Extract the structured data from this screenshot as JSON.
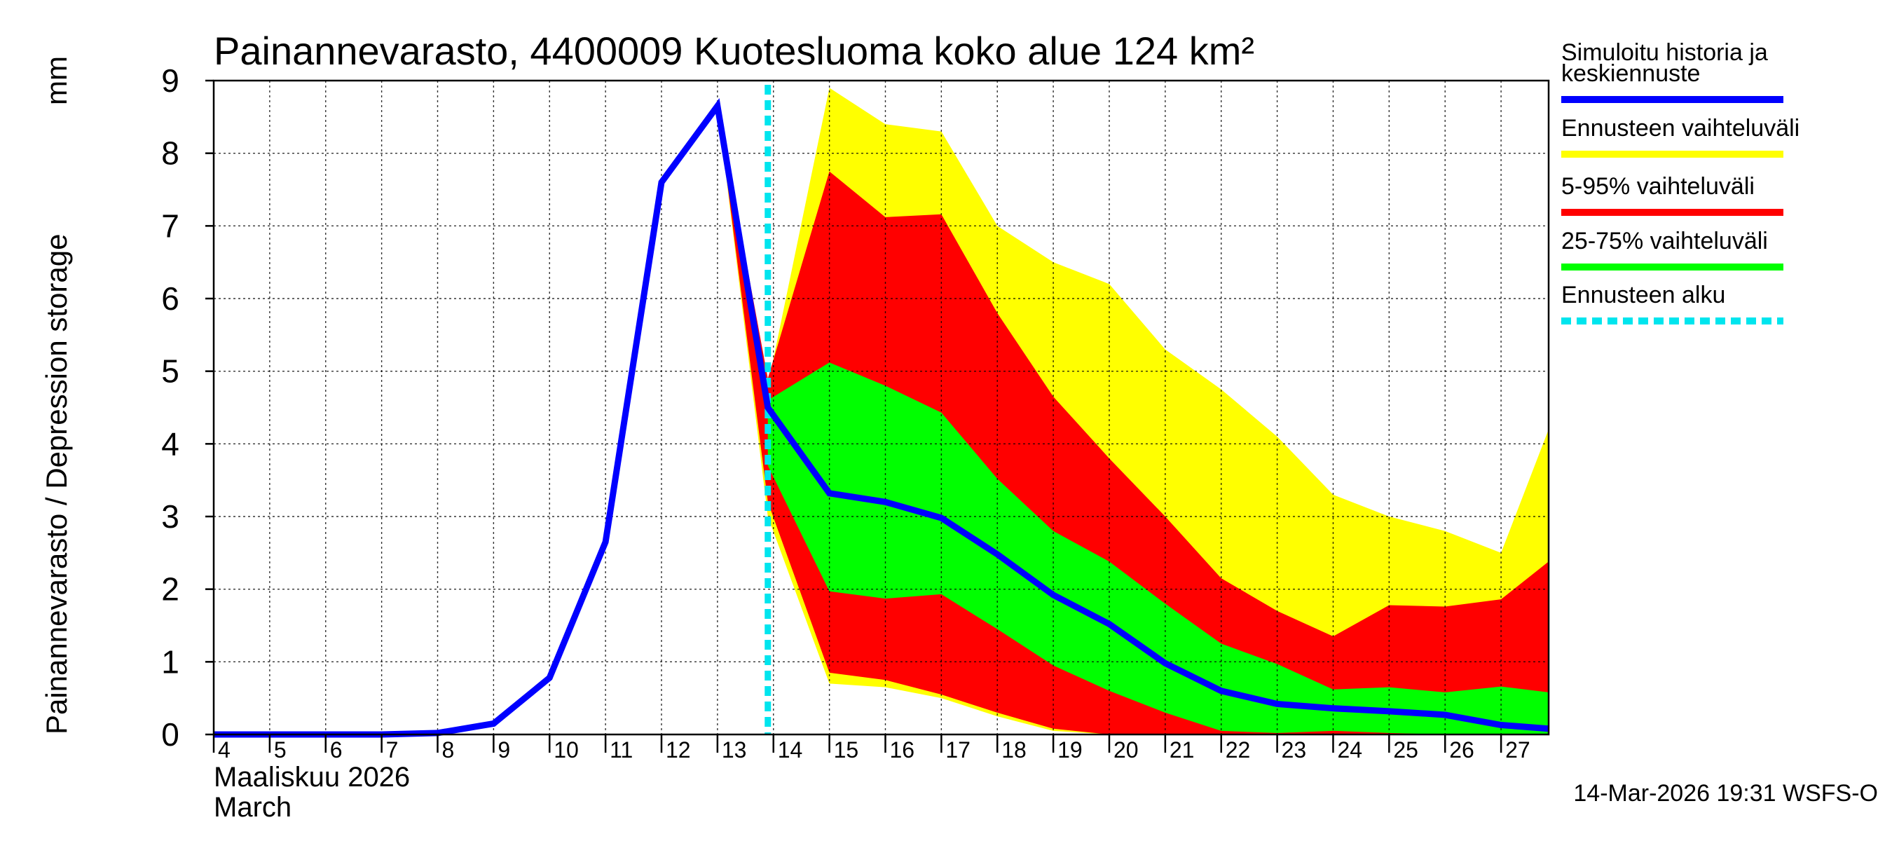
{
  "chart_data": {
    "type": "area",
    "title": "Painannevarasto, 4400009 Kuotesluoma koko alue 124 km²",
    "ylabel_fi": "Painannevarasto / Depression storage",
    "yunit": "mm",
    "xlabel_fi": "Maaliskuu 2026",
    "xlabel_en": "March",
    "ylim": [
      0,
      9
    ],
    "xlim": [
      4,
      27.85
    ],
    "y_ticks": [
      "0",
      "1",
      "2",
      "3",
      "4",
      "5",
      "6",
      "7",
      "8",
      "9"
    ],
    "x_tick_labels": [
      "4",
      "5",
      "6",
      "7",
      "8",
      "9",
      "10",
      "11",
      "12",
      "13",
      "14",
      "15",
      "16",
      "17",
      "18",
      "19",
      "20",
      "21",
      "22",
      "23",
      "24",
      "25",
      "26",
      "27"
    ],
    "grid": true,
    "forecast_start_x": 13.9,
    "series": [
      {
        "name": "Simuloitu historia ja keskiennuste",
        "color": "#0000ff",
        "x": [
          4,
          5,
          6,
          7,
          8,
          9,
          10,
          11,
          12,
          13,
          13.9,
          15,
          16,
          17,
          18,
          19,
          20,
          21,
          22,
          23,
          24,
          25,
          26,
          27,
          27.85
        ],
        "y": [
          0,
          0,
          0,
          0,
          0.02,
          0.15,
          0.78,
          2.65,
          7.6,
          8.65,
          4.5,
          3.32,
          3.2,
          2.98,
          2.48,
          1.92,
          1.52,
          0.98,
          0.6,
          0.42,
          0.36,
          0.32,
          0.27,
          0.13,
          0.08
        ]
      }
    ],
    "bands": [
      {
        "name": "Ennusteen vaihteluväli",
        "color": "#ffff00",
        "x": [
          13,
          13.9,
          15,
          16,
          17,
          18,
          19,
          20,
          21,
          22,
          23,
          24,
          25,
          26,
          27,
          27.85
        ],
        "lower": [
          8.65,
          3.0,
          0.7,
          0.65,
          0.5,
          0.25,
          0.05,
          0,
          0,
          0,
          0,
          0,
          0,
          0,
          0,
          0
        ],
        "upper": [
          8.65,
          4.8,
          8.9,
          8.4,
          8.3,
          7.0,
          6.5,
          6.2,
          5.3,
          4.75,
          4.1,
          3.3,
          3.0,
          2.8,
          2.5,
          4.2
        ]
      },
      {
        "name": "5-95% vaihteluväli",
        "color": "#ff0000",
        "x": [
          13,
          13.9,
          15,
          16,
          17,
          18,
          19,
          20,
          21,
          22,
          23,
          24,
          25,
          26,
          27,
          27.85
        ],
        "lower": [
          8.65,
          3.2,
          0.85,
          0.75,
          0.55,
          0.3,
          0.08,
          0,
          0,
          0,
          0,
          0,
          0,
          0,
          0,
          0
        ],
        "upper": [
          8.65,
          4.9,
          7.75,
          7.12,
          7.16,
          5.8,
          4.65,
          3.8,
          3.0,
          2.15,
          1.7,
          1.35,
          1.78,
          1.76,
          1.86,
          2.38
        ]
      },
      {
        "name": "25-75% vaihteluväli",
        "color": "#00ff00",
        "x": [
          13.9,
          15,
          16,
          17,
          18,
          19,
          20,
          21,
          22,
          23,
          24,
          25,
          26,
          27,
          27.85
        ],
        "lower": [
          3.7,
          1.97,
          1.87,
          1.93,
          1.45,
          0.95,
          0.6,
          0.3,
          0.05,
          0.02,
          0.05,
          0.02,
          0,
          0,
          0
        ],
        "upper": [
          4.6,
          5.12,
          4.8,
          4.43,
          3.52,
          2.8,
          2.38,
          1.8,
          1.25,
          0.97,
          0.62,
          0.65,
          0.58,
          0.66,
          0.58
        ]
      }
    ],
    "legend": [
      {
        "label_lines": [
          "Simuloitu historia ja",
          "keskiennuste"
        ],
        "color": "#0000ff",
        "style": "solid"
      },
      {
        "label_lines": [
          "Ennusteen vaihteluväli"
        ],
        "color": "#ffff00",
        "style": "solid"
      },
      {
        "label_lines": [
          "5-95% vaihteluväli"
        ],
        "color": "#ff0000",
        "style": "solid"
      },
      {
        "label_lines": [
          "25-75% vaihteluväli"
        ],
        "color": "#00ff00",
        "style": "solid"
      },
      {
        "label_lines": [
          "Ennusteen alku"
        ],
        "color": "#00e5ee",
        "style": "dashed"
      }
    ],
    "legend_position": "right",
    "timestamp": "14-Mar-2026 19:31 WSFS-O"
  }
}
